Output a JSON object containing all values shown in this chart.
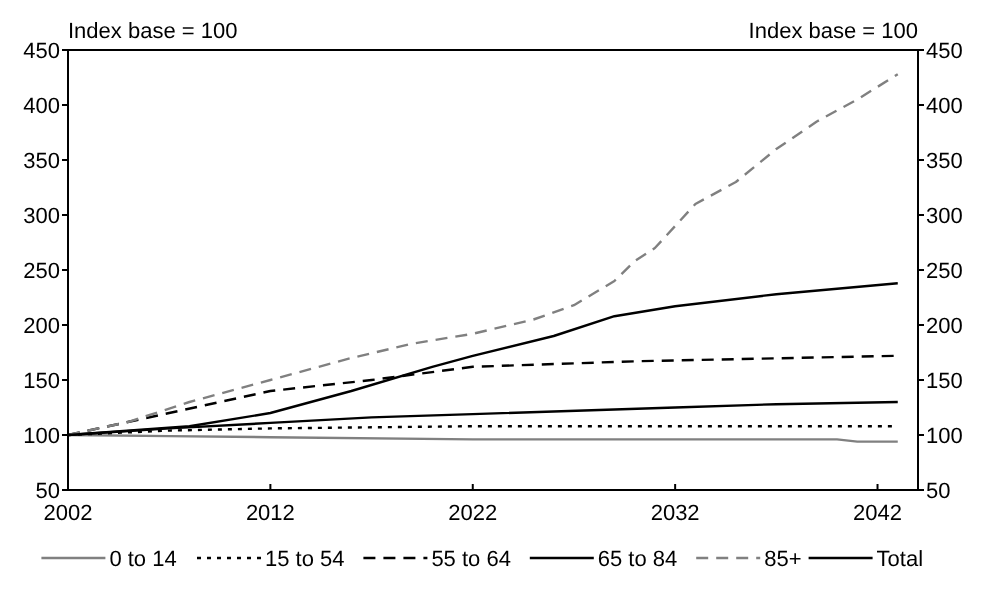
{
  "chart_data": {
    "type": "line",
    "ylabel": "Index base = 100",
    "y2label": "Index base = 100",
    "xlim": [
      2002,
      2044
    ],
    "xticks": [
      2002,
      2012,
      2022,
      2032,
      2042
    ],
    "ylim": [
      50,
      450
    ],
    "yticks": [
      50,
      100,
      150,
      200,
      250,
      300,
      350,
      400,
      450
    ],
    "y2lim": [
      50,
      450
    ],
    "y2ticks": [
      50,
      100,
      150,
      200,
      250,
      300,
      350,
      400,
      450
    ],
    "grid": false,
    "legend": "bottom",
    "series": [
      {
        "name": "0 to 14",
        "color": "#808080",
        "line_style": "solid",
        "x": [
          2002,
          2007,
          2012,
          2022,
          2032,
          2040,
          2041,
          2043
        ],
        "values": [
          100,
          99,
          98,
          96,
          96,
          96,
          94,
          94
        ]
      },
      {
        "name": "15 to 54",
        "color": "#000000",
        "line_style": "dotted",
        "x": [
          2002,
          2007,
          2012,
          2022,
          2043
        ],
        "values": [
          100,
          104,
          106,
          108,
          108
        ]
      },
      {
        "name": "55 to 64",
        "color": "#000000",
        "line_style": "dashed",
        "x": [
          2002,
          2007,
          2012,
          2017,
          2022,
          2030,
          2043
        ],
        "values": [
          100,
          120,
          140,
          150,
          162,
          167,
          172
        ]
      },
      {
        "name": "65 to 84",
        "color": "#000000",
        "line_style": "solid",
        "x": [
          2002,
          2008,
          2012,
          2016,
          2020,
          2022,
          2026,
          2029,
          2032,
          2037,
          2043
        ],
        "values": [
          100,
          108,
          120,
          140,
          162,
          172,
          190,
          208,
          217,
          228,
          238
        ]
      },
      {
        "name": "85+",
        "color": "#808080",
        "line_style": "dashed",
        "x": [
          2002,
          2005,
          2008,
          2012,
          2016,
          2019,
          2022,
          2025,
          2027,
          2029,
          2030,
          2031,
          2032,
          2033,
          2035,
          2037,
          2039,
          2041,
          2043
        ],
        "values": [
          100,
          112,
          130,
          150,
          170,
          183,
          192,
          205,
          218,
          240,
          258,
          270,
          290,
          310,
          330,
          360,
          385,
          405,
          428
        ]
      },
      {
        "name": "Total",
        "color": "#000000",
        "line_style": "solid",
        "x": [
          2002,
          2007,
          2012,
          2017,
          2022,
          2032,
          2037,
          2043
        ],
        "values": [
          100,
          106,
          111,
          116,
          119,
          125,
          128,
          130
        ]
      }
    ]
  }
}
